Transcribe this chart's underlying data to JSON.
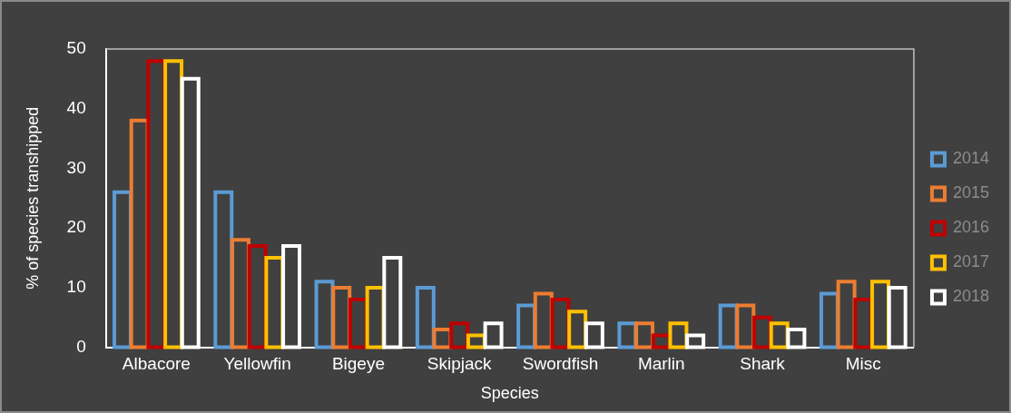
{
  "chart_data": {
    "type": "bar",
    "xlabel": "Species",
    "ylabel": "% of species transhipped",
    "categories": [
      "Albacore",
      "Yellowfin",
      "Bigeye",
      "Skipjack",
      "Swordfish",
      "Marlin",
      "Shark",
      "Misc"
    ],
    "series": [
      {
        "name": "2014",
        "color": "#5b9bd5",
        "values": [
          26,
          26,
          11,
          10,
          7,
          4,
          7,
          9
        ]
      },
      {
        "name": "2015",
        "color": "#ed7d31",
        "values": [
          38,
          18,
          10,
          3,
          9,
          4,
          7,
          11
        ]
      },
      {
        "name": "2016",
        "color": "#c00000",
        "values": [
          48,
          17,
          8,
          4,
          8,
          2,
          5,
          8
        ]
      },
      {
        "name": "2017",
        "color": "#ffc000",
        "values": [
          48,
          15,
          10,
          2,
          6,
          4,
          4,
          11
        ]
      },
      {
        "name": "2018",
        "color": "#ffffff",
        "values": [
          45,
          17,
          15,
          4,
          4,
          2,
          3,
          10
        ]
      }
    ],
    "ylim": [
      0,
      50
    ],
    "yticks": [
      0,
      10,
      20,
      30,
      40,
      50
    ],
    "grid": false,
    "legend": "right"
  }
}
